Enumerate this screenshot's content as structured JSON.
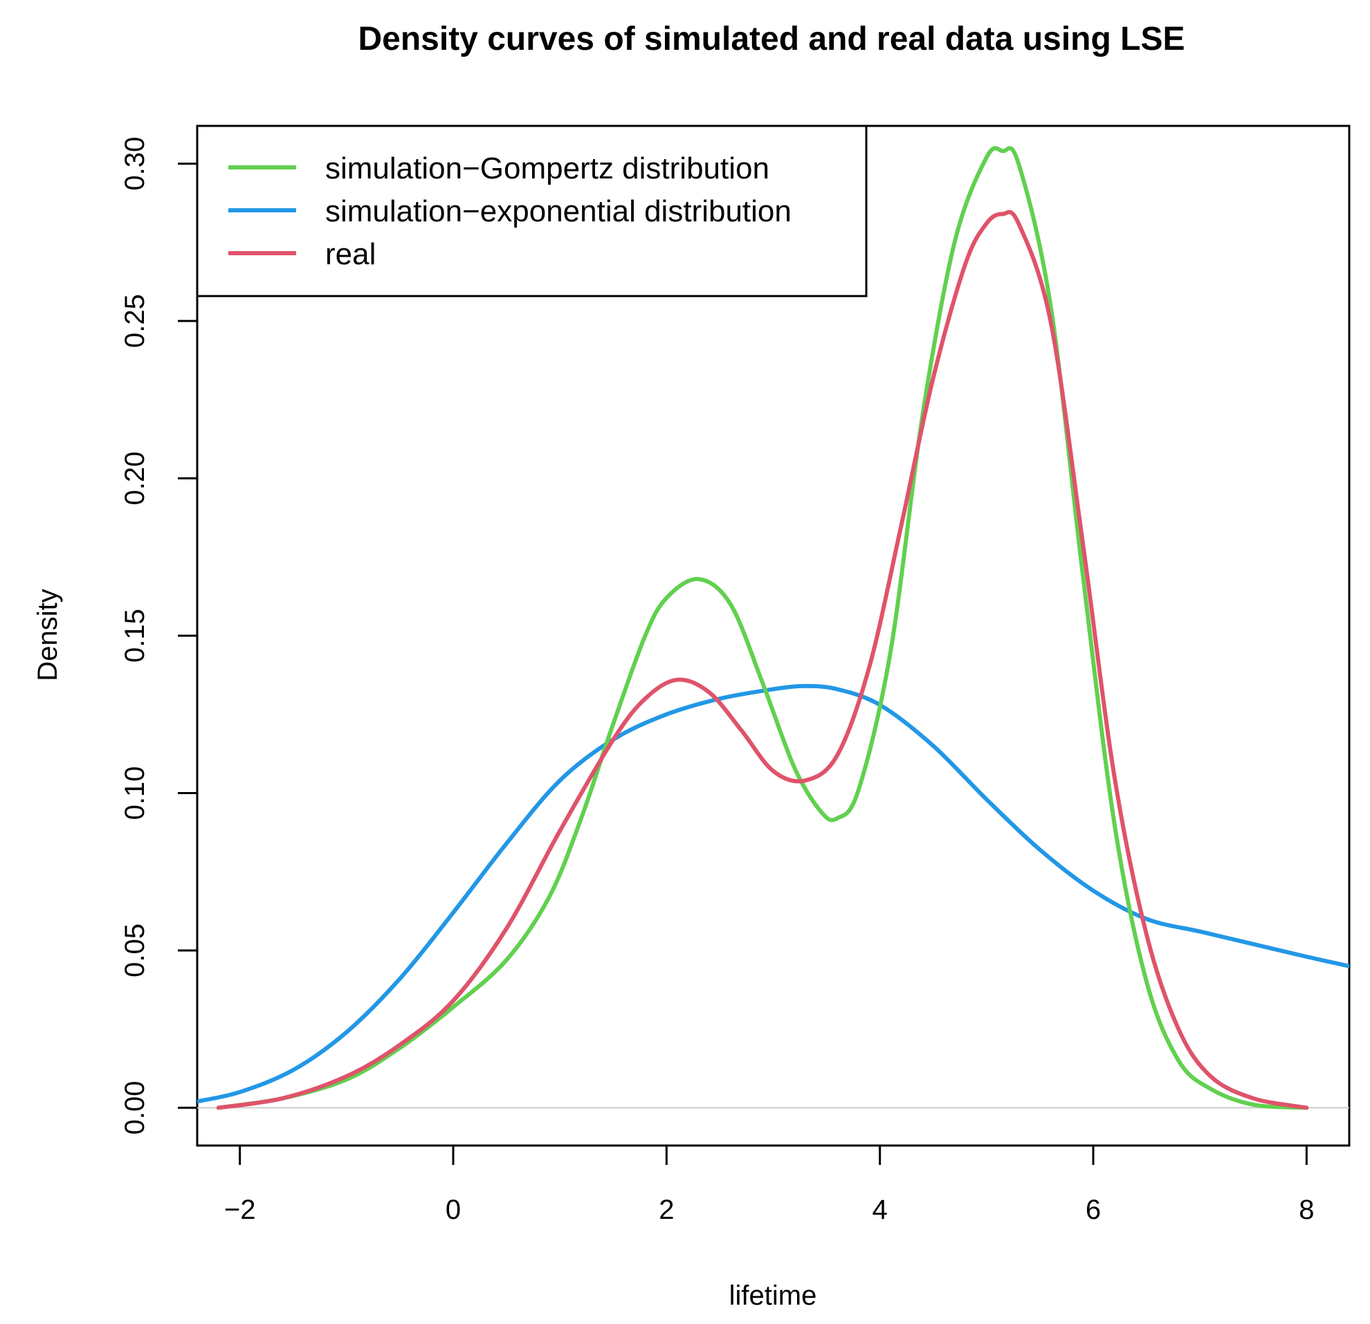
{
  "chart_data": {
    "type": "line",
    "title": "Density curves of simulated and real data using LSE",
    "xlabel": "lifetime",
    "ylabel": "Density",
    "xlim": [
      -2.4,
      8.4
    ],
    "ylim": [
      -0.012,
      0.312
    ],
    "x_ticks": [
      -2,
      0,
      2,
      4,
      6,
      8
    ],
    "y_ticks": [
      0.0,
      0.05,
      0.1,
      0.15,
      0.2,
      0.25,
      0.3
    ],
    "x_tick_labels": [
      "−2",
      "0",
      "2",
      "4",
      "6",
      "8"
    ],
    "y_tick_labels": [
      "0.00",
      "0.05",
      "0.10",
      "0.15",
      "0.20",
      "0.25",
      "0.30"
    ],
    "grid": false,
    "zero_line": true,
    "legend_position": "top-left",
    "series": [
      {
        "name": "simulation−Gompertz distribution",
        "color": "#61D04F",
        "x": [
          -2.2,
          -1.6,
          -1.0,
          -0.5,
          0.0,
          0.5,
          0.9,
          1.2,
          1.5,
          1.8,
          2.0,
          2.3,
          2.6,
          2.9,
          3.2,
          3.45,
          3.6,
          3.8,
          4.1,
          4.4,
          4.7,
          5.0,
          5.15,
          5.3,
          5.6,
          5.9,
          6.2,
          6.5,
          6.8,
          7.1,
          7.5,
          8.0
        ],
        "y": [
          0.0,
          0.003,
          0.009,
          0.019,
          0.032,
          0.047,
          0.067,
          0.092,
          0.122,
          0.15,
          0.162,
          0.168,
          0.16,
          0.135,
          0.108,
          0.094,
          0.092,
          0.101,
          0.145,
          0.22,
          0.275,
          0.302,
          0.304,
          0.3,
          0.255,
          0.17,
          0.09,
          0.04,
          0.015,
          0.006,
          0.001,
          0.0
        ]
      },
      {
        "name": "simulation−exponential distribution",
        "color": "#2297E6",
        "x": [
          -2.4,
          -2.0,
          -1.5,
          -1.0,
          -0.5,
          0.0,
          0.5,
          1.0,
          1.5,
          2.0,
          2.5,
          3.0,
          3.3,
          3.6,
          4.0,
          4.5,
          5.0,
          5.5,
          6.0,
          6.5,
          7.0,
          7.5,
          8.0,
          8.4
        ],
        "y": [
          0.002,
          0.005,
          0.012,
          0.024,
          0.041,
          0.062,
          0.084,
          0.104,
          0.117,
          0.125,
          0.13,
          0.133,
          0.134,
          0.133,
          0.128,
          0.115,
          0.098,
          0.082,
          0.069,
          0.06,
          0.056,
          0.052,
          0.048,
          0.045
        ]
      },
      {
        "name": "real",
        "color": "#DF536B",
        "x": [
          -2.2,
          -1.6,
          -1.0,
          -0.5,
          0.0,
          0.5,
          1.0,
          1.5,
          1.8,
          2.1,
          2.4,
          2.7,
          3.0,
          3.3,
          3.6,
          3.9,
          4.2,
          4.5,
          4.8,
          5.0,
          5.15,
          5.3,
          5.6,
          5.9,
          6.2,
          6.5,
          6.8,
          7.1,
          7.5,
          8.0
        ],
        "y": [
          0.0,
          0.003,
          0.01,
          0.02,
          0.034,
          0.057,
          0.088,
          0.117,
          0.13,
          0.136,
          0.132,
          0.12,
          0.107,
          0.104,
          0.112,
          0.14,
          0.185,
          0.232,
          0.268,
          0.281,
          0.284,
          0.281,
          0.25,
          0.18,
          0.105,
          0.055,
          0.025,
          0.01,
          0.003,
          0.0
        ]
      }
    ]
  }
}
